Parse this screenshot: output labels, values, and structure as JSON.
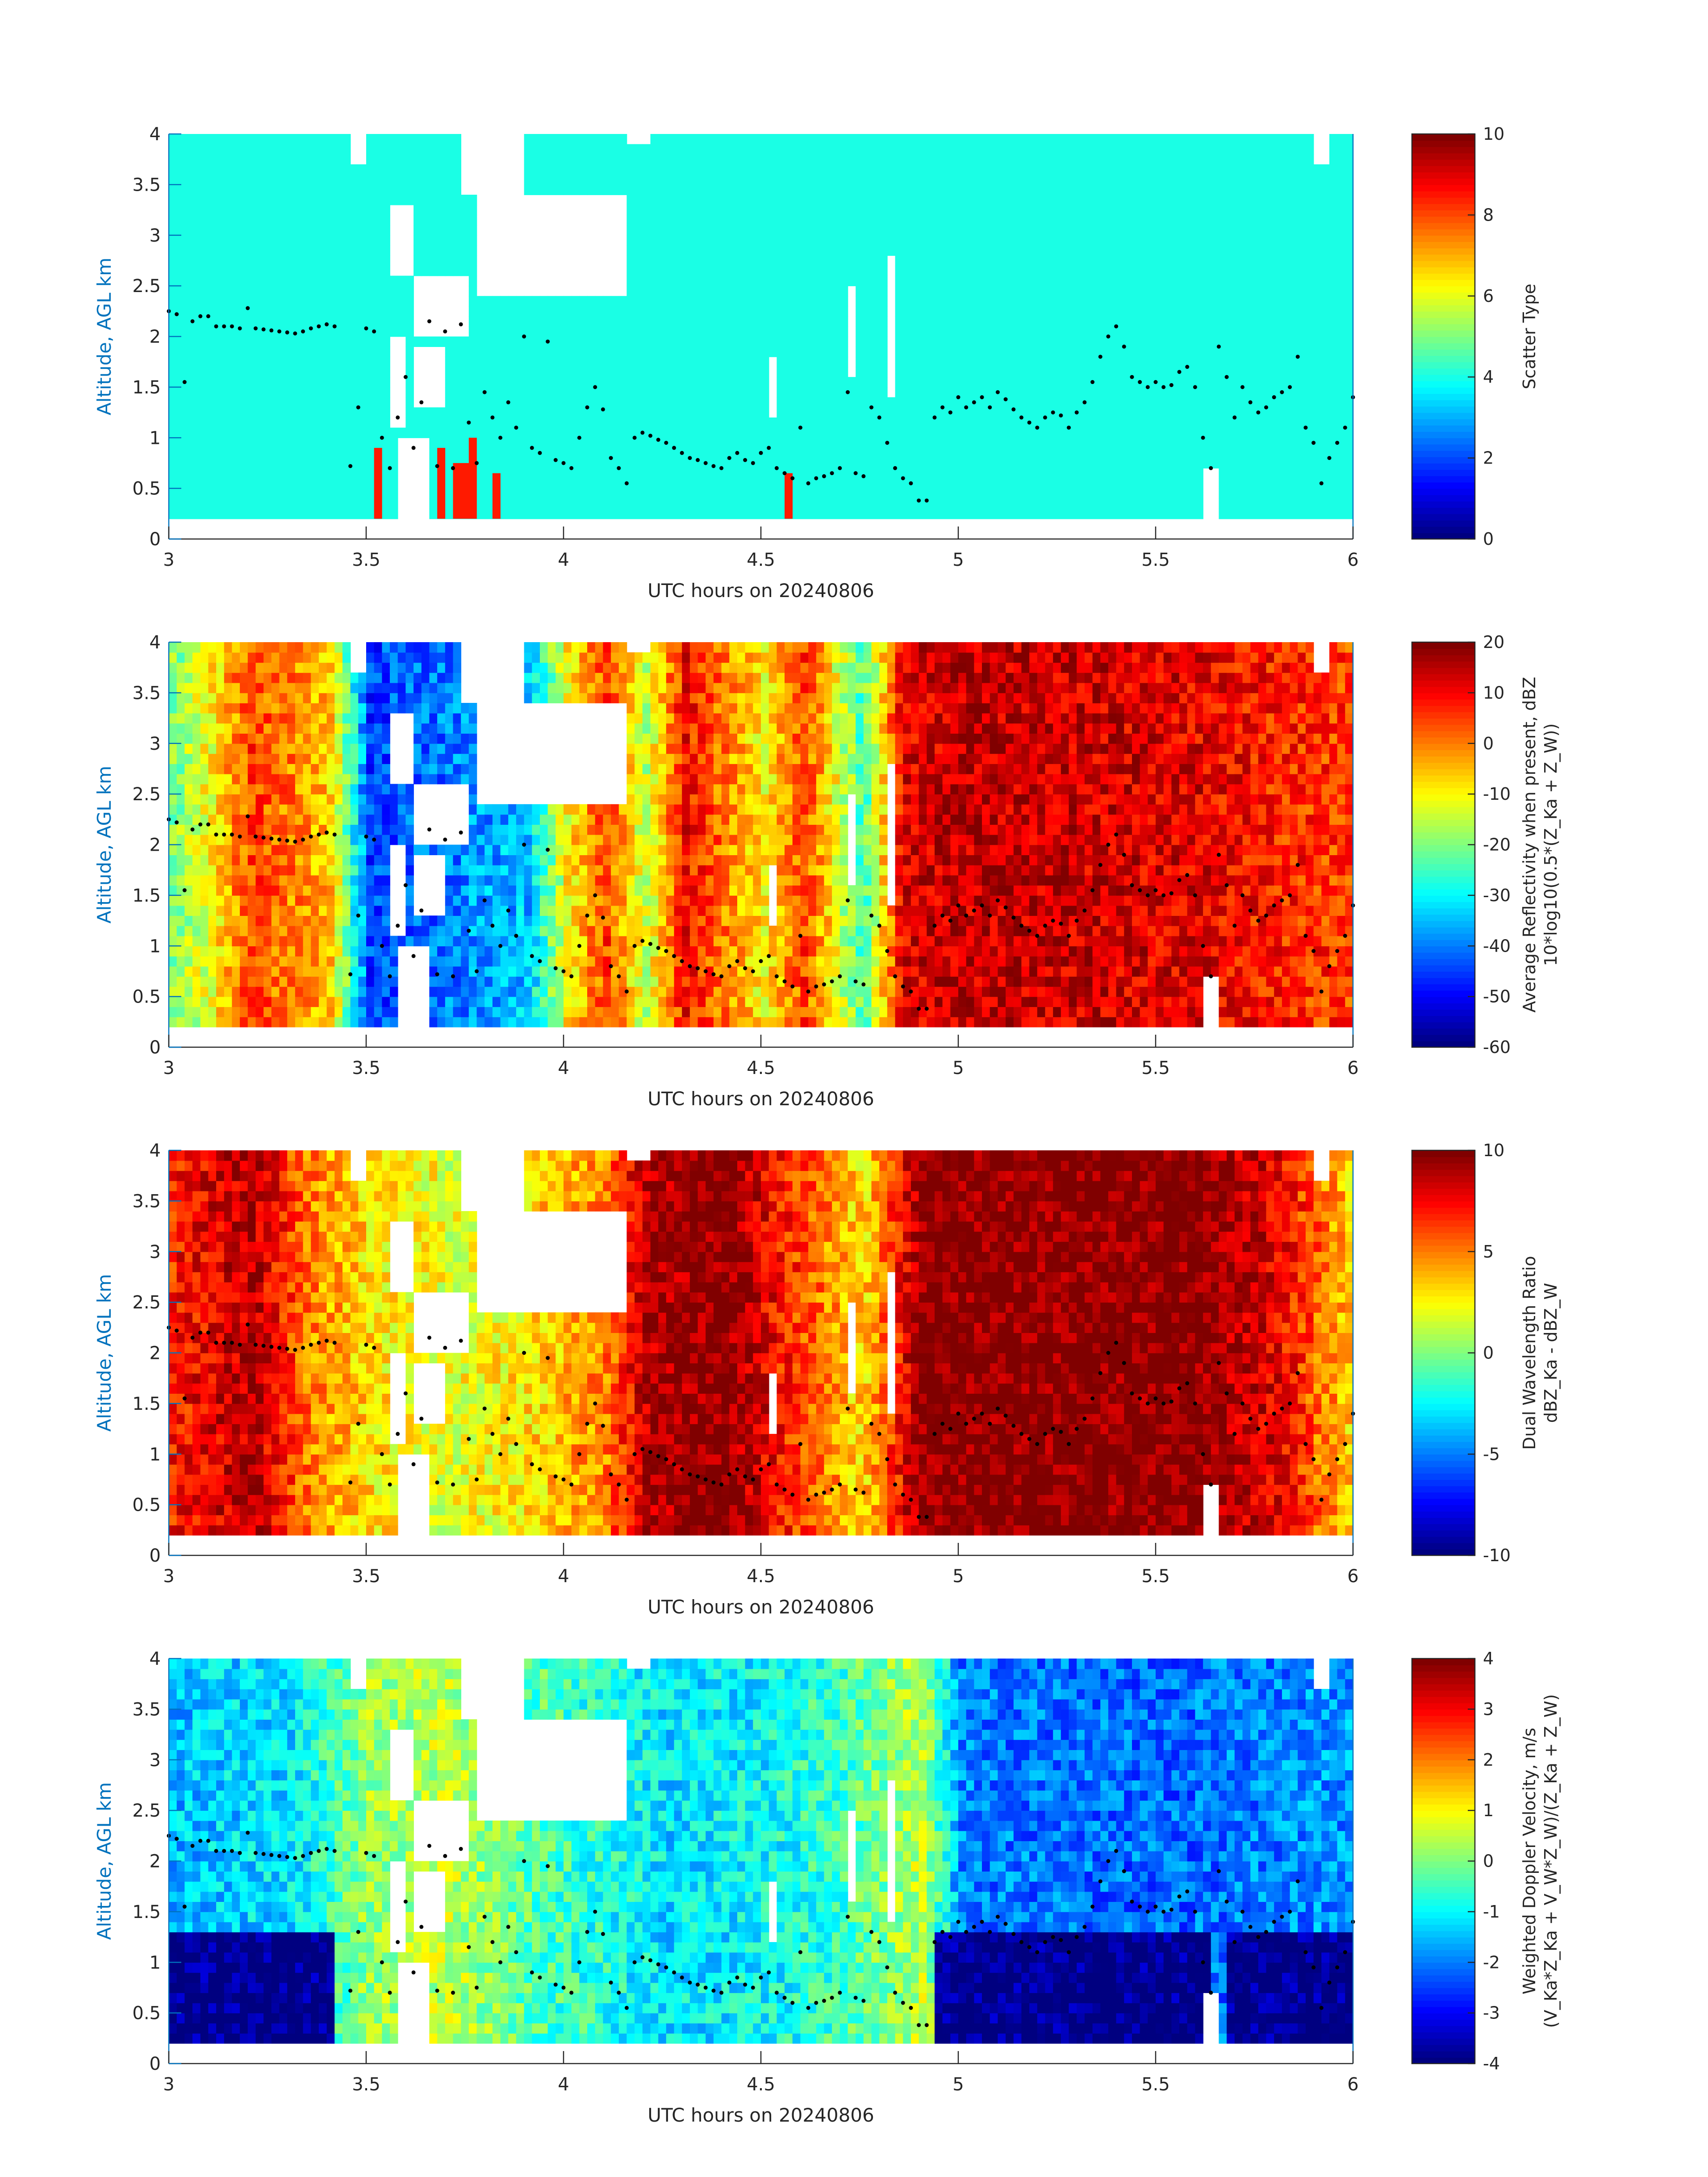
{
  "figure": {
    "xlabel": "UTC hours on 20240806",
    "ylabel": "Altitude, AGL km"
  },
  "chart_data": [
    {
      "type": "heatmap",
      "id": "scatter",
      "xlabel": "UTC hours on 20240806",
      "ylabel": "Altitude, AGL km",
      "xlim": [
        3,
        6
      ],
      "ylim": [
        0,
        4
      ],
      "xticks": [
        "3",
        "3.5",
        "4",
        "4.5",
        "5",
        "5.5",
        "6"
      ],
      "yticks": [
        "0",
        "0.5",
        "1",
        "1.5",
        "2",
        "2.5",
        "3",
        "3.5",
        "4"
      ],
      "colorbar": {
        "label_lines": [
          "Scatter Type"
        ],
        "ticks": [
          "0",
          "2",
          "4",
          "6",
          "8",
          "10"
        ],
        "range": [
          0,
          10
        ]
      },
      "dominant_value": 4,
      "spikes": [
        {
          "x": 3.52,
          "top": 0.9,
          "value": 8.5
        },
        {
          "x": 3.68,
          "top": 0.9,
          "value": 8.5
        },
        {
          "x": 3.72,
          "top": 0.75,
          "value": 8.5
        },
        {
          "x": 3.74,
          "top": 0.75,
          "value": 8.5
        },
        {
          "x": 3.76,
          "top": 1.0,
          "value": 8.5
        },
        {
          "x": 3.82,
          "top": 0.65,
          "value": 8.5
        },
        {
          "x": 4.56,
          "top": 0.65,
          "value": 8.5
        }
      ]
    },
    {
      "type": "heatmap",
      "id": "reflectivity",
      "xlabel": "UTC hours on 20240806",
      "ylabel": "Altitude, AGL km",
      "xlim": [
        3,
        6
      ],
      "ylim": [
        0,
        4
      ],
      "xticks": [
        "3",
        "3.5",
        "4",
        "4.5",
        "5",
        "5.5",
        "6"
      ],
      "yticks": [
        "0",
        "0.5",
        "1",
        "1.5",
        "2",
        "2.5",
        "3",
        "3.5",
        "4"
      ],
      "colorbar": {
        "label_lines": [
          "Average Reflectivity when present, dBZ",
          "10*log10(0.5*(Z_Ka + Z_W))"
        ],
        "ticks": [
          "-60",
          "-50",
          "-40",
          "-30",
          "-20",
          "-10",
          "0",
          "10",
          "20"
        ],
        "range": [
          -60,
          20
        ]
      },
      "profile": [
        {
          "x": 3.0,
          "value": -20
        },
        {
          "x": 3.1,
          "value": -10
        },
        {
          "x": 3.2,
          "value": 5
        },
        {
          "x": 3.3,
          "value": 0
        },
        {
          "x": 3.4,
          "value": -5
        },
        {
          "x": 3.5,
          "value": -45
        },
        {
          "x": 3.7,
          "value": -40
        },
        {
          "x": 3.9,
          "value": -35
        },
        {
          "x": 4.0,
          "value": -10
        },
        {
          "x": 4.1,
          "value": 5
        },
        {
          "x": 4.2,
          "value": -15
        },
        {
          "x": 4.3,
          "value": 10
        },
        {
          "x": 4.5,
          "value": -10
        },
        {
          "x": 4.6,
          "value": 5
        },
        {
          "x": 4.75,
          "value": -25
        },
        {
          "x": 4.85,
          "value": 12
        },
        {
          "x": 5.0,
          "value": 15
        },
        {
          "x": 5.3,
          "value": 14
        },
        {
          "x": 5.6,
          "value": 12
        },
        {
          "x": 5.8,
          "value": 8
        },
        {
          "x": 6.0,
          "value": 5
        }
      ]
    },
    {
      "type": "heatmap",
      "id": "dwr",
      "xlabel": "UTC hours on 20240806",
      "ylabel": "Altitude, AGL km",
      "xlim": [
        3,
        6
      ],
      "ylim": [
        0,
        4
      ],
      "xticks": [
        "3",
        "3.5",
        "4",
        "4.5",
        "5",
        "5.5",
        "6"
      ],
      "yticks": [
        "0",
        "0.5",
        "1",
        "1.5",
        "2",
        "2.5",
        "3",
        "3.5",
        "4"
      ],
      "colorbar": {
        "label_lines": [
          "Dual Wavelength Ratio",
          "dBZ_Ka - dBZ_W"
        ],
        "ticks": [
          "-10",
          "-5",
          "0",
          "5",
          "10"
        ],
        "range": [
          -10,
          10
        ]
      },
      "profile": [
        {
          "x": 3.0,
          "value": 7
        },
        {
          "x": 3.2,
          "value": 9
        },
        {
          "x": 3.35,
          "value": 5
        },
        {
          "x": 3.5,
          "value": 3
        },
        {
          "x": 3.7,
          "value": 2
        },
        {
          "x": 3.9,
          "value": 3
        },
        {
          "x": 4.1,
          "value": 5
        },
        {
          "x": 4.2,
          "value": 9
        },
        {
          "x": 4.4,
          "value": 10
        },
        {
          "x": 4.6,
          "value": 6
        },
        {
          "x": 4.75,
          "value": 3
        },
        {
          "x": 4.9,
          "value": 10
        },
        {
          "x": 5.3,
          "value": 10
        },
        {
          "x": 5.6,
          "value": 10
        },
        {
          "x": 5.8,
          "value": 8
        },
        {
          "x": 6.0,
          "value": 3
        }
      ]
    },
    {
      "type": "heatmap",
      "id": "doppler",
      "xlabel": "UTC hours on 20240806",
      "ylabel": "Altitude, AGL km",
      "xlim": [
        3,
        6
      ],
      "ylim": [
        0,
        4
      ],
      "xticks": [
        "3",
        "3.5",
        "4",
        "4.5",
        "5",
        "5.5",
        "6"
      ],
      "yticks": [
        "0",
        "0.5",
        "1",
        "1.5",
        "2",
        "2.5",
        "3",
        "3.5",
        "4"
      ],
      "colorbar": {
        "label_lines": [
          "Weighted Doppler Velocity, m/s",
          "(V_Ka*Z_Ka + V_W*Z_W)/(Z_Ka + Z_W)"
        ],
        "ticks": [
          "-4",
          "-3",
          "-2",
          "-1",
          "0",
          "1",
          "2",
          "3",
          "4"
        ],
        "range": [
          -4,
          4
        ]
      },
      "profile": [
        {
          "x": 3.0,
          "value": -1.5
        },
        {
          "x": 3.3,
          "value": -1.2
        },
        {
          "x": 3.5,
          "value": 0.2
        },
        {
          "x": 3.7,
          "value": 0.5
        },
        {
          "x": 3.9,
          "value": -0.3
        },
        {
          "x": 4.1,
          "value": -0.8
        },
        {
          "x": 4.25,
          "value": -1.2
        },
        {
          "x": 4.5,
          "value": -1.0
        },
        {
          "x": 4.7,
          "value": -0.5
        },
        {
          "x": 4.9,
          "value": 0.5
        },
        {
          "x": 5.0,
          "value": -2.0
        },
        {
          "x": 5.5,
          "value": -2.2
        },
        {
          "x": 6.0,
          "value": -1.8
        }
      ],
      "low_layer": {
        "top": 1.3,
        "value": -4
      }
    }
  ],
  "overlay_points": {
    "x": [
      3.0,
      3.02,
      3.04,
      3.06,
      3.08,
      3.1,
      3.12,
      3.14,
      3.16,
      3.18,
      3.2,
      3.22,
      3.24,
      3.26,
      3.28,
      3.3,
      3.32,
      3.34,
      3.36,
      3.38,
      3.4,
      3.42,
      3.46,
      3.48,
      3.5,
      3.52,
      3.54,
      3.56,
      3.58,
      3.6,
      3.62,
      3.64,
      3.66,
      3.68,
      3.7,
      3.72,
      3.74,
      3.76,
      3.78,
      3.8,
      3.82,
      3.84,
      3.86,
      3.88,
      3.9,
      3.92,
      3.94,
      3.96,
      3.98,
      4.0,
      4.02,
      4.04,
      4.06,
      4.08,
      4.1,
      4.12,
      4.14,
      4.16,
      4.18,
      4.2,
      4.22,
      4.24,
      4.26,
      4.28,
      4.3,
      4.32,
      4.34,
      4.36,
      4.38,
      4.4,
      4.42,
      4.44,
      4.46,
      4.48,
      4.5,
      4.52,
      4.54,
      4.56,
      4.58,
      4.6,
      4.62,
      4.64,
      4.66,
      4.68,
      4.7,
      4.72,
      4.74,
      4.76,
      4.78,
      4.8,
      4.82,
      4.84,
      4.86,
      4.88,
      4.9,
      4.92,
      4.94,
      4.96,
      4.98,
      5.0,
      5.02,
      5.04,
      5.06,
      5.08,
      5.1,
      5.12,
      5.14,
      5.16,
      5.18,
      5.2,
      5.22,
      5.24,
      5.26,
      5.28,
      5.3,
      5.32,
      5.34,
      5.36,
      5.38,
      5.4,
      5.42,
      5.44,
      5.46,
      5.48,
      5.5,
      5.52,
      5.54,
      5.56,
      5.58,
      5.6,
      5.62,
      5.64,
      5.66,
      5.68,
      5.7,
      5.72,
      5.74,
      5.76,
      5.78,
      5.8,
      5.82,
      5.84,
      5.86,
      5.88,
      5.9,
      5.92,
      5.94,
      5.96,
      5.98,
      6.0
    ],
    "y": [
      2.25,
      2.22,
      1.55,
      2.15,
      2.2,
      2.2,
      2.1,
      2.1,
      2.1,
      2.08,
      2.28,
      2.08,
      2.07,
      2.06,
      2.05,
      2.04,
      2.03,
      2.05,
      2.08,
      2.1,
      2.12,
      2.1,
      0.72,
      1.3,
      2.08,
      2.05,
      1.0,
      0.7,
      1.2,
      1.6,
      0.9,
      1.35,
      2.15,
      0.72,
      2.05,
      0.7,
      2.12,
      1.15,
      0.75,
      1.45,
      1.2,
      1.0,
      1.35,
      1.1,
      2.0,
      0.9,
      0.85,
      1.95,
      0.78,
      0.75,
      0.7,
      1.0,
      1.3,
      1.5,
      1.28,
      0.8,
      0.7,
      0.55,
      1.0,
      1.05,
      1.02,
      0.98,
      0.95,
      0.9,
      0.85,
      0.8,
      0.78,
      0.75,
      0.72,
      0.7,
      0.8,
      0.85,
      0.78,
      0.75,
      0.85,
      0.9,
      0.7,
      0.65,
      0.6,
      1.1,
      0.55,
      0.6,
      0.62,
      0.65,
      0.7,
      1.45,
      0.65,
      0.62,
      1.3,
      1.2,
      0.95,
      0.7,
      0.6,
      0.55,
      0.38,
      0.38,
      1.2,
      1.3,
      1.25,
      1.4,
      1.3,
      1.35,
      1.4,
      1.3,
      1.45,
      1.38,
      1.28,
      1.2,
      1.15,
      1.1,
      1.2,
      1.25,
      1.22,
      1.1,
      1.25,
      1.35,
      1.55,
      1.8,
      2.0,
      2.1,
      1.9,
      1.6,
      1.55,
      1.5,
      1.55,
      1.5,
      1.52,
      1.65,
      1.7,
      1.5,
      1.0,
      0.7,
      1.9,
      1.6,
      1.2,
      1.5,
      1.35,
      1.25,
      1.3,
      1.4,
      1.45,
      1.5,
      1.8,
      1.1,
      0.95,
      0.55,
      0.8,
      0.95,
      1.1,
      1.4
    ]
  }
}
